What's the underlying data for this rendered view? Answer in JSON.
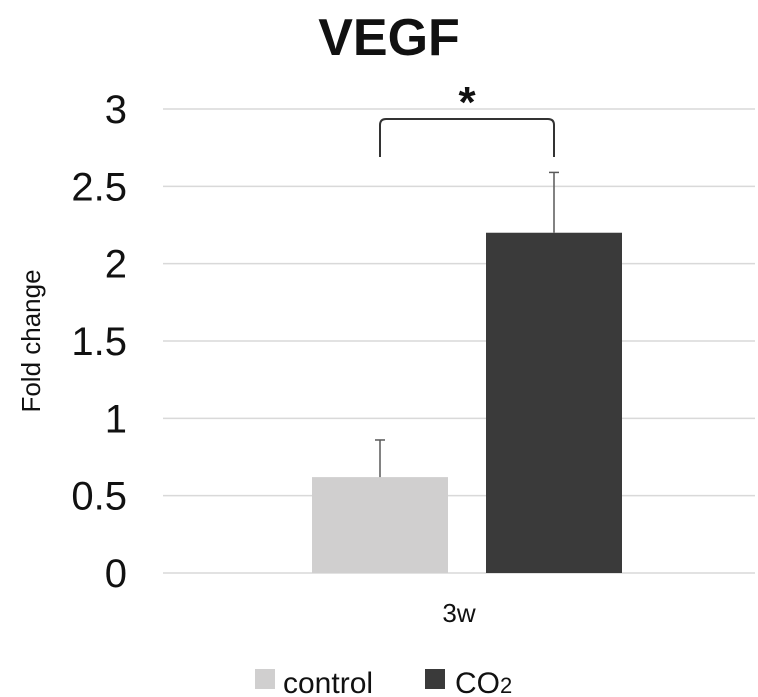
{
  "chart_data": {
    "type": "bar",
    "title": "VEGF",
    "xlabel": "",
    "ylabel": "Fold change",
    "categories": [
      "3w"
    ],
    "ylim": [
      0,
      3
    ],
    "yticks": [
      "0",
      "0.5",
      "1",
      "1.5",
      "2",
      "2.5",
      "3"
    ],
    "grid": true,
    "legend_position": "bottom",
    "series": [
      {
        "name": "control",
        "values": [
          0.62
        ],
        "error": [
          0.24
        ],
        "color": "#d0cfcf"
      },
      {
        "name": "CO2",
        "name_display": "CO",
        "name_subscript": "2",
        "values": [
          2.2
        ],
        "error": [
          0.39
        ],
        "color": "#3a3a3a"
      }
    ],
    "annotations": [
      {
        "type": "significance-bracket",
        "between": [
          "control",
          "CO2"
        ],
        "text": "*"
      }
    ]
  }
}
